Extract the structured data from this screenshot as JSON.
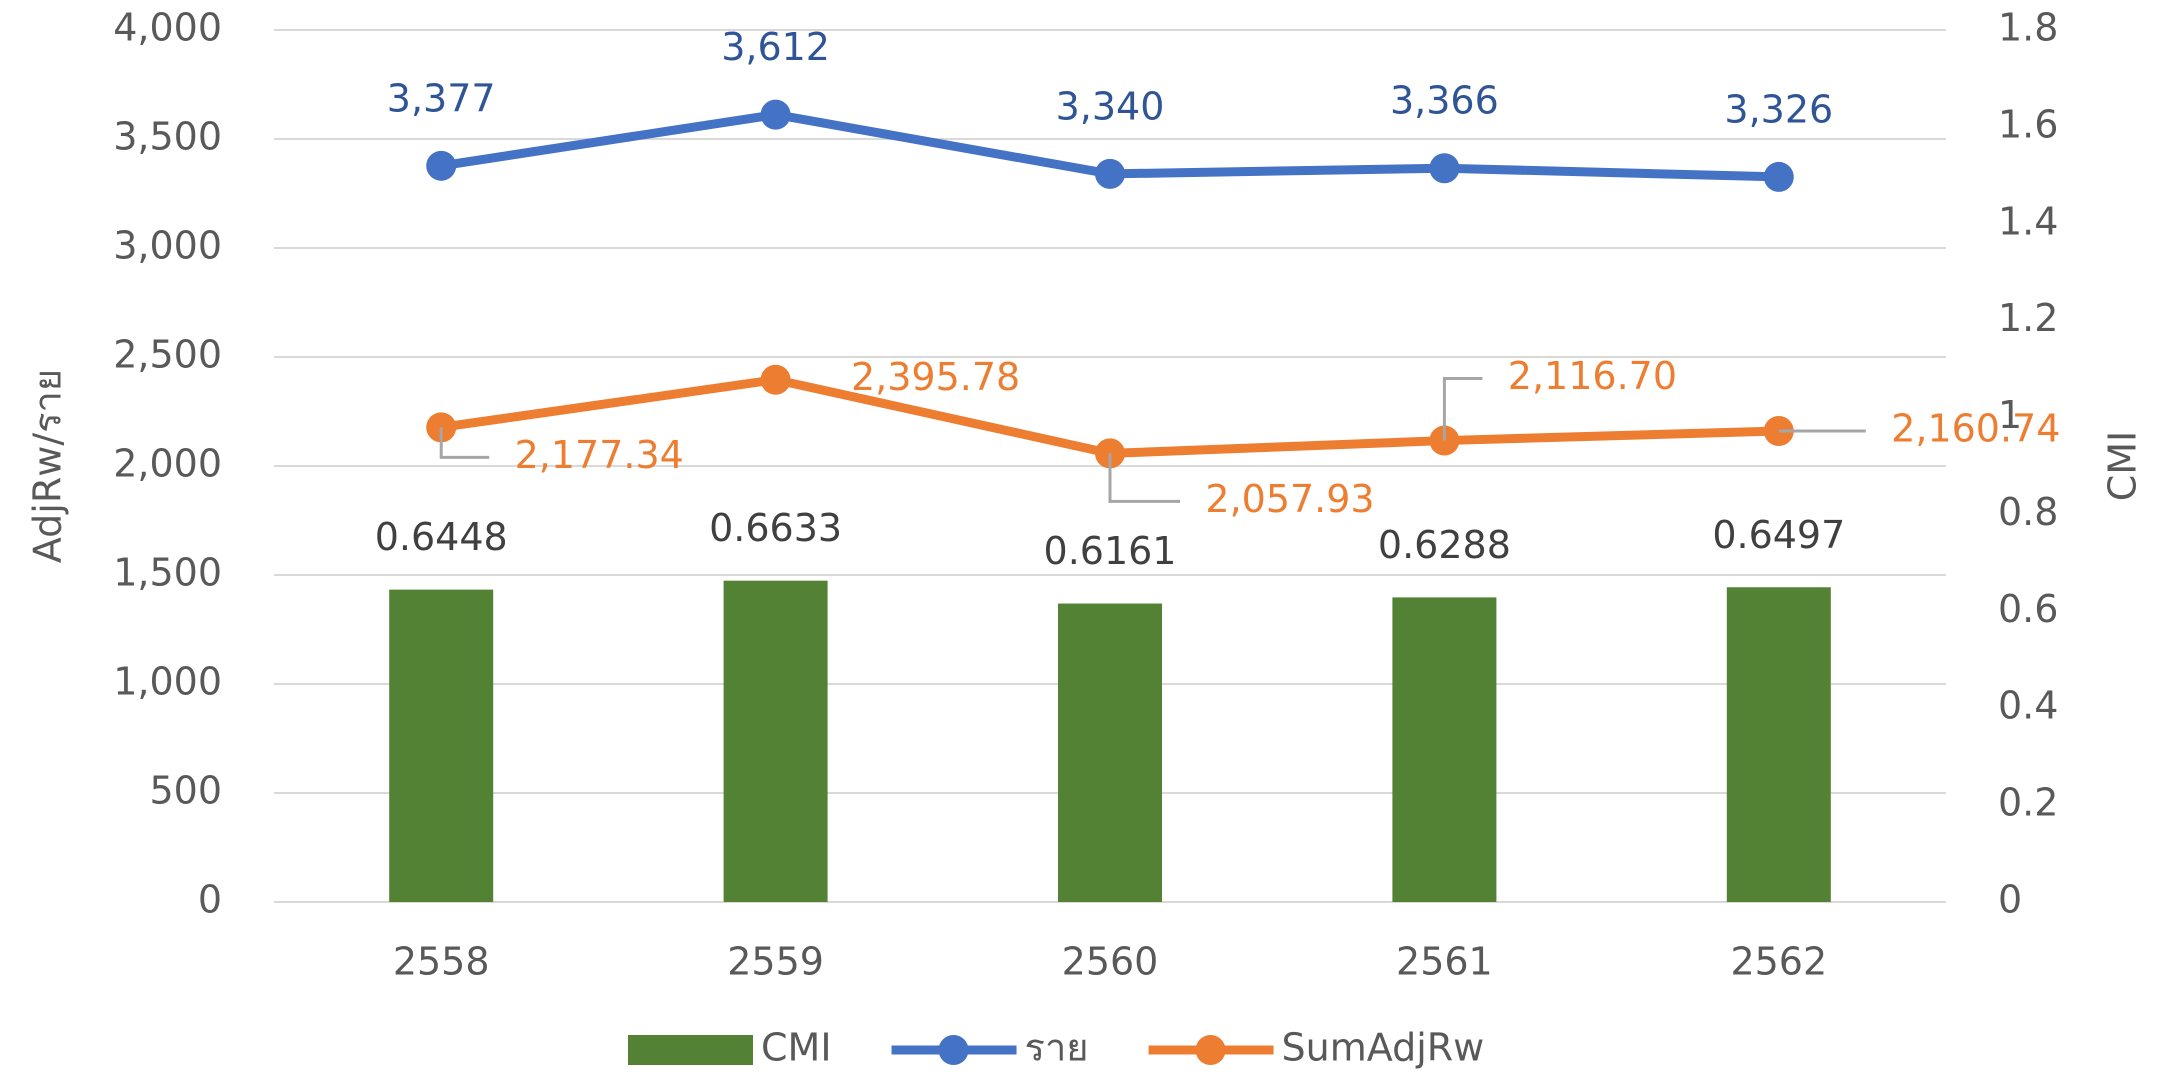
{
  "chart_data": {
    "type": "combo",
    "categories": [
      "2558",
      "2559",
      "2560",
      "2561",
      "2562"
    ],
    "y_label": "AdjRw/ราย",
    "y2_label": "CMI",
    "ylim": [
      0,
      4000
    ],
    "yticks": [
      0,
      {
        "value": 500,
        "label": "500"
      },
      {
        "value": 1000,
        "label": "1,000"
      },
      {
        "value": 1500,
        "label": "1,500"
      },
      {
        "value": 2000,
        "label": "2,000"
      },
      {
        "value": 2500,
        "label": "2,500"
      },
      {
        "value": 3000,
        "label": "3,000"
      },
      {
        "value": 3500,
        "label": "3,500"
      },
      {
        "value": 4000,
        "label": "4,000"
      }
    ],
    "y2lim": [
      0,
      1.8
    ],
    "y2ticks": [
      0,
      0.2,
      0.4,
      0.6,
      0.8,
      1,
      1.2,
      1.4,
      1.6,
      1.8
    ],
    "grid": true,
    "legend": "bottom",
    "series": [
      {
        "name": "CMI",
        "type": "bar",
        "axis": "y2",
        "color": "#548235",
        "values": [
          0.6448,
          0.6633,
          0.6161,
          0.6288,
          0.6497
        ]
      },
      {
        "name": "ราย",
        "type": "line",
        "color": "#4472c4",
        "values": [
          3377,
          3612,
          3340,
          3366,
          3326
        ],
        "value_labels": [
          "3,377",
          "3,612",
          "3,340",
          "3,366",
          "3,326"
        ]
      },
      {
        "name": "SumAdjRw",
        "type": "line",
        "color": "#ed7d31",
        "values": [
          2177.34,
          2395.78,
          2057.93,
          2116.7,
          2160.74
        ],
        "value_labels": [
          "2,177.34",
          "2,395.78",
          "2,057.93",
          "2,116.70",
          "2,160.74"
        ]
      }
    ]
  }
}
